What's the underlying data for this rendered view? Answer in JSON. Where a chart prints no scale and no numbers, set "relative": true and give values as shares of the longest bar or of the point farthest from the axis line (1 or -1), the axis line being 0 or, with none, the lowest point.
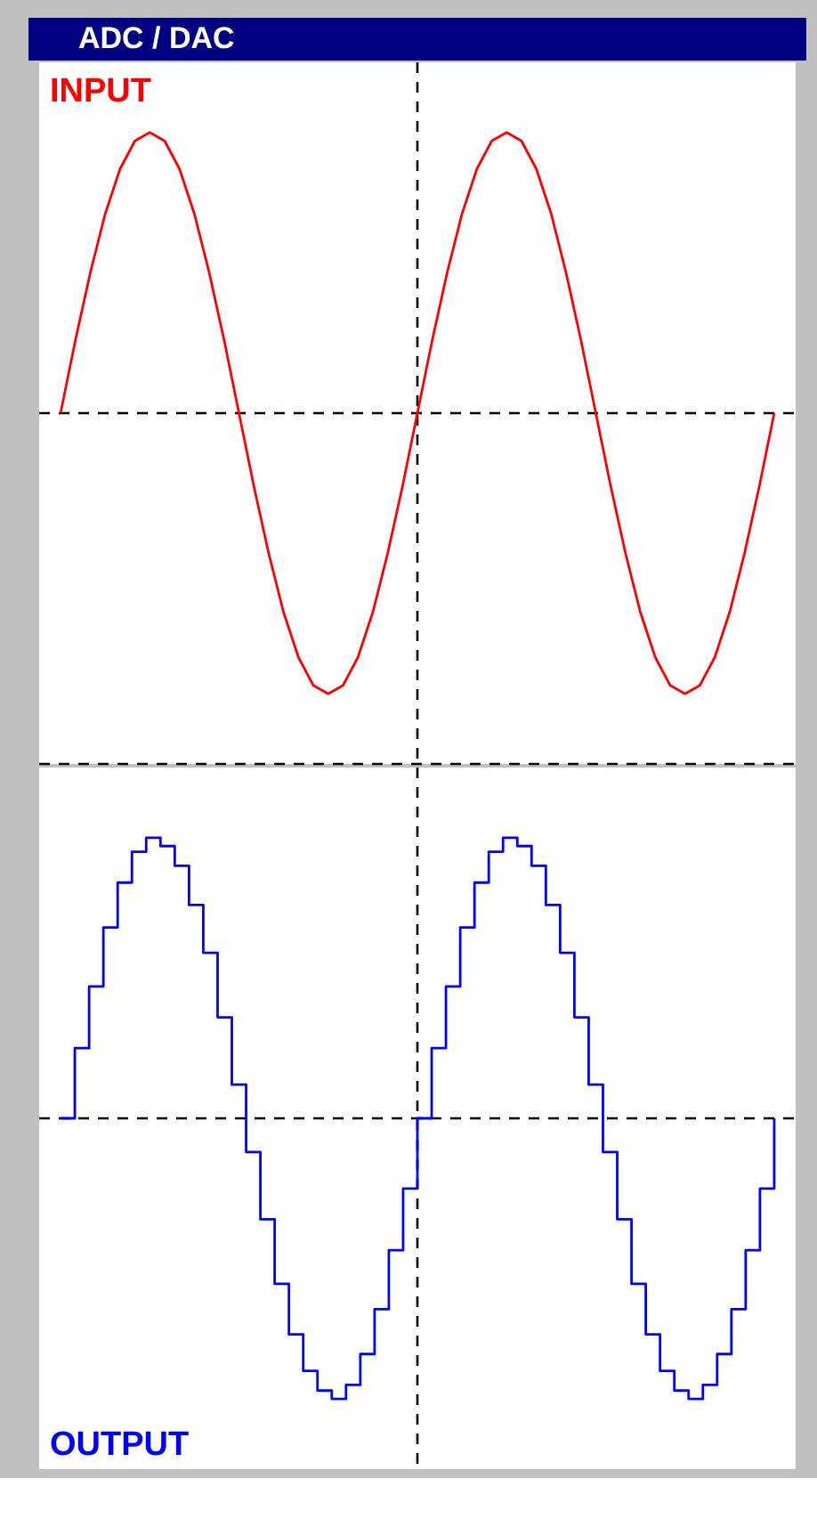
{
  "chart_data": [
    {
      "type": "line",
      "title": "ADC / DAC",
      "relative": true,
      "tick_labels": false,
      "legend": false,
      "line_style": "solid",
      "marker": "none",
      "categories": [
        null,
        null,
        null,
        null,
        null,
        null,
        null,
        null,
        null,
        null,
        null,
        null,
        null,
        null,
        null,
        null,
        null,
        null,
        null,
        null,
        null,
        null,
        null,
        null,
        null,
        null,
        null,
        null,
        null,
        null,
        null,
        null,
        null,
        null,
        null,
        null,
        null,
        null,
        null,
        null,
        null,
        null,
        null,
        null,
        null,
        null,
        null,
        null,
        null
      ],
      "series": [
        {
          "name": "INPUT",
          "color": "#ff0000",
          "values": [
            0,
            0.26,
            0.5,
            0.71,
            0.87,
            0.97,
            1,
            0.97,
            0.87,
            0.71,
            0.5,
            0.26,
            0,
            -0.26,
            -0.5,
            -0.71,
            -0.87,
            -0.97,
            -1,
            -0.97,
            -0.87,
            -0.71,
            -0.5,
            -0.26,
            0,
            0.26,
            0.5,
            0.71,
            0.87,
            0.97,
            1,
            0.97,
            0.87,
            0.71,
            0.5,
            0.26,
            0,
            -0.26,
            -0.5,
            -0.71,
            -0.87,
            -0.97,
            -1,
            -0.97,
            -0.87,
            -0.71,
            -0.5,
            -0.26,
            0
          ]
        }
      ]
    },
    {
      "type": "step",
      "relative": true,
      "tick_labels": false,
      "legend": false,
      "line_style": "solid",
      "marker": "none",
      "categories": [
        null,
        null,
        null,
        null,
        null,
        null,
        null,
        null,
        null,
        null,
        null,
        null,
        null,
        null,
        null,
        null,
        null,
        null,
        null,
        null,
        null,
        null,
        null,
        null,
        null,
        null,
        null,
        null,
        null,
        null,
        null,
        null,
        null,
        null,
        null,
        null,
        null,
        null,
        null,
        null,
        null,
        null,
        null,
        null,
        null,
        null,
        null,
        null,
        null,
        null,
        null
      ],
      "series": [
        {
          "name": "OUTPUT",
          "color": "#0000ff",
          "values": [
            0,
            0.25,
            0.47,
            0.68,
            0.84,
            0.95,
            1,
            0.97,
            0.9,
            0.76,
            0.59,
            0.36,
            0.12,
            -0.12,
            -0.36,
            -0.59,
            -0.77,
            -0.9,
            -0.97,
            -1,
            -0.95,
            -0.84,
            -0.68,
            -0.47,
            -0.25,
            0,
            0.25,
            0.47,
            0.68,
            0.84,
            0.95,
            1,
            0.97,
            0.9,
            0.76,
            0.59,
            0.36,
            0.12,
            -0.12,
            -0.36,
            -0.59,
            -0.77,
            -0.9,
            -0.97,
            -1,
            -0.95,
            -0.84,
            -0.68,
            -0.47,
            -0.25,
            0
          ]
        }
      ]
    }
  ]
}
